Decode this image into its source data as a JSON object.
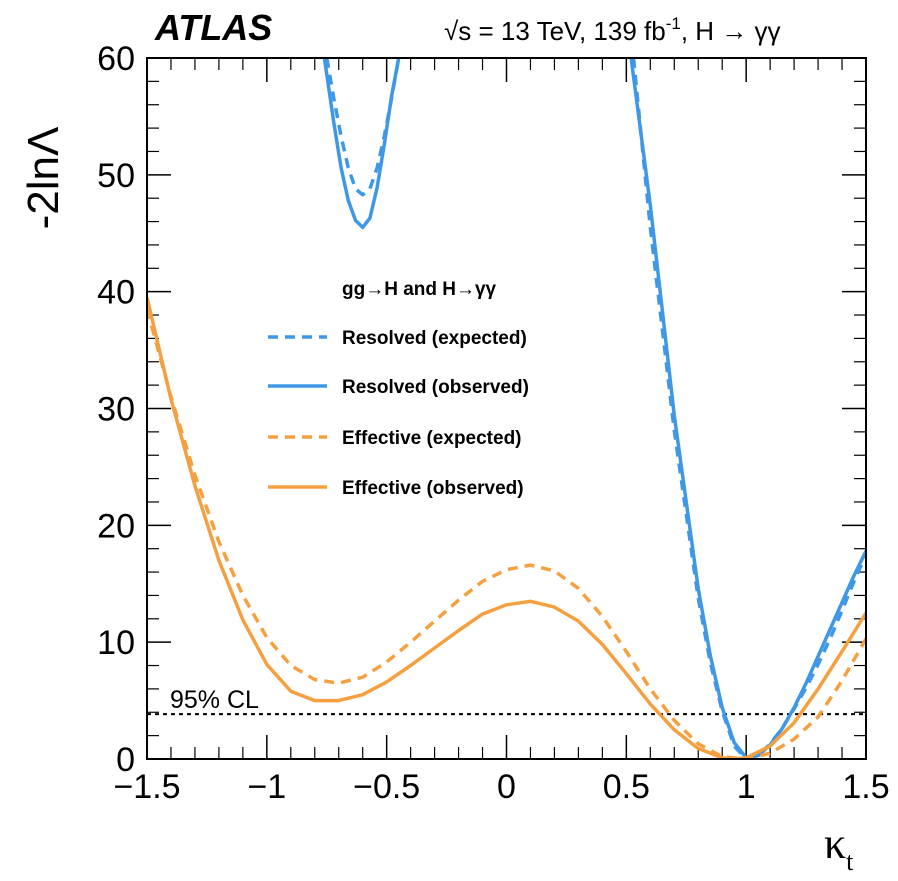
{
  "header": {
    "experiment": "ATLAS",
    "conditions": "√s = 13 TeV, 139 fb",
    "conditions_sup": "-1",
    "conditions_tail": ", H → γγ"
  },
  "chart_data": {
    "type": "line",
    "xlabel": "κ",
    "xlabel_sub": "t",
    "ylabel": "-2lnΛ",
    "xlim": [
      -1.5,
      1.5
    ],
    "ylim": [
      0,
      60
    ],
    "xticks": [
      -1.5,
      -1,
      -0.5,
      0,
      0.5,
      1,
      1.5
    ],
    "xtick_labels": [
      "−1.5",
      "−1",
      "−0.5",
      "0",
      "0.5",
      "1",
      "1.5"
    ],
    "yticks": [
      0,
      10,
      20,
      30,
      40,
      50,
      60
    ],
    "ytick_labels": [
      "0",
      "10",
      "20",
      "30",
      "40",
      "50",
      "60"
    ],
    "legend": {
      "title": "gg→H and H→γγ",
      "placement": "upper-center"
    },
    "reference_line": {
      "y": 3.84,
      "label": "95% CL"
    },
    "series": [
      {
        "name": "Resolved (expected)",
        "color": "#3f98e6",
        "dashed": true,
        "segments": [
          {
            "x": [
              -0.75,
              -0.72,
              -0.69,
              -0.66,
              -0.63,
              -0.6,
              -0.57,
              -0.54,
              -0.51,
              -0.48,
              -0.45
            ],
            "y": [
              60,
              56.5,
              53.3,
              50.6,
              48.8,
              48.3,
              48.8,
              50.6,
              53.3,
              56.5,
              60
            ]
          },
          {
            "x": [
              0.53,
              0.6,
              0.7,
              0.8,
              0.85,
              0.9,
              0.95,
              1.0,
              1.05,
              1.1,
              1.15,
              1.2,
              1.25,
              1.3,
              1.35,
              1.4,
              1.45,
              1.5
            ],
            "y": [
              60,
              45.5,
              28.1,
              13.8,
              8.3,
              4.1,
              1.1,
              0,
              0.3,
              1.3,
              2.6,
              4.3,
              6.1,
              8.1,
              10.3,
              12.7,
              15.2,
              17.5
            ]
          }
        ]
      },
      {
        "name": "Resolved (observed)",
        "color": "#3f98e6",
        "dashed": false,
        "segments": [
          {
            "x": [
              -0.76,
              -0.72,
              -0.69,
              -0.66,
              -0.63,
              -0.6,
              -0.57,
              -0.54,
              -0.51,
              -0.48,
              -0.45
            ],
            "y": [
              60,
              54.4,
              50.6,
              47.8,
              46.1,
              45.5,
              46.3,
              48.9,
              52.6,
              56.7,
              60
            ]
          },
          {
            "x": [
              0.52,
              0.6,
              0.7,
              0.8,
              0.85,
              0.9,
              0.95,
              1.0,
              1.05,
              1.1,
              1.15,
              1.2,
              1.25,
              1.3,
              1.35,
              1.4,
              1.45,
              1.5
            ],
            "y": [
              60,
              47.4,
              29.4,
              14.6,
              8.9,
              4.4,
              1.4,
              0.1,
              0.3,
              1.2,
              2.6,
              4.4,
              6.5,
              8.8,
              11.1,
              13.4,
              15.7,
              17.8
            ]
          }
        ]
      },
      {
        "name": "Effective (expected)",
        "color": "#f5a040",
        "dashed": true,
        "segments": [
          {
            "x": [
              -1.5,
              -1.4,
              -1.3,
              -1.2,
              -1.1,
              -1.0,
              -0.9,
              -0.8,
              -0.7,
              -0.6,
              -0.5,
              -0.4,
              -0.3,
              -0.2,
              -0.1,
              0.0,
              0.1,
              0.2,
              0.3,
              0.4,
              0.5,
              0.6,
              0.7,
              0.8,
              0.9,
              1.0,
              1.1,
              1.2,
              1.3,
              1.4,
              1.5
            ],
            "y": [
              38.5,
              31.0,
              24.3,
              18.6,
              14.0,
              10.4,
              8.0,
              6.8,
              6.5,
              7.0,
              8.3,
              10.0,
              11.8,
              13.6,
              15.2,
              16.2,
              16.6,
              16.1,
              14.6,
              12.2,
              9.2,
              6.0,
              3.3,
              1.3,
              0.2,
              0.0,
              0.5,
              1.7,
              3.6,
              6.7,
              10.3
            ]
          }
        ]
      },
      {
        "name": "Effective (observed)",
        "color": "#f5a040",
        "dashed": false,
        "segments": [
          {
            "x": [
              -1.5,
              -1.4,
              -1.3,
              -1.2,
              -1.1,
              -1.0,
              -0.9,
              -0.8,
              -0.7,
              -0.6,
              -0.5,
              -0.4,
              -0.3,
              -0.2,
              -0.1,
              0.0,
              0.1,
              0.2,
              0.3,
              0.4,
              0.5,
              0.6,
              0.7,
              0.8,
              0.9,
              0.95,
              1.0,
              1.1,
              1.2,
              1.3,
              1.4,
              1.5
            ],
            "y": [
              39.5,
              30.8,
              23.4,
              17.0,
              11.9,
              8.1,
              5.8,
              5.0,
              5.0,
              5.5,
              6.6,
              8.0,
              9.5,
              11.0,
              12.4,
              13.2,
              13.5,
              13.0,
              11.8,
              9.8,
              7.3,
              4.7,
              2.5,
              0.9,
              0.1,
              0.0,
              0.1,
              1.1,
              3.1,
              6.0,
              9.2,
              12.5
            ]
          }
        ]
      }
    ]
  }
}
